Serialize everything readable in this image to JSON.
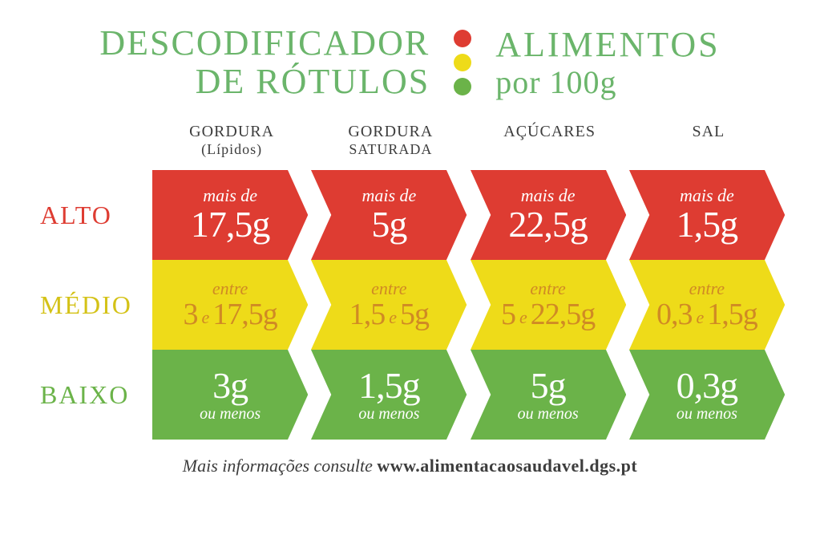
{
  "type": "infographic",
  "background_color": "#ffffff",
  "header": {
    "title_left_line1": "DESCODIFICADOR",
    "title_left_line2": "DE RÓTULOS",
    "title_right_line1": "ALIMENTOS",
    "title_right_line2": "por 100g",
    "title_color": "#6bb56b",
    "title_fontsize": 44
  },
  "traffic_colors": {
    "red": "#de3c32",
    "yellow": "#eedb19",
    "green": "#6bb349"
  },
  "columns": [
    {
      "label": "GORDURA",
      "sublabel": "(Lípidos)"
    },
    {
      "label": "GORDURA",
      "sublabel": "SATURADA"
    },
    {
      "label": "AÇÚCARES",
      "sublabel": ""
    },
    {
      "label": "SAL",
      "sublabel": ""
    }
  ],
  "column_header_color": "#3d3d3d",
  "rows": [
    {
      "label": "ALTO",
      "label_color": "#de3c32",
      "bg_color": "#de3c32",
      "pretext": "mais de",
      "cells": [
        {
          "value": "17,5g"
        },
        {
          "value": "5g"
        },
        {
          "value": "22,5g"
        },
        {
          "value": "1,5g"
        }
      ]
    },
    {
      "label": "MÉDIO",
      "label_color": "#d4c217",
      "bg_color": "#eedb19",
      "text_color": "#d08a24",
      "pretext": "entre",
      "connector": "e",
      "cells": [
        {
          "low": "3",
          "high": "17,5g"
        },
        {
          "low": "1,5",
          "high": "5g"
        },
        {
          "low": "5",
          "high": "22,5g"
        },
        {
          "low": "0,3",
          "high": "1,5g"
        }
      ]
    },
    {
      "label": "BAIXO",
      "label_color": "#6bb349",
      "bg_color": "#6bb349",
      "posttext": "ou menos",
      "cells": [
        {
          "value": "3g"
        },
        {
          "value": "1,5g"
        },
        {
          "value": "5g"
        },
        {
          "value": "0,3g"
        }
      ]
    }
  ],
  "arrow_notch": 26,
  "footer": {
    "text": "Mais informações consulte ",
    "url": "www.alimentacaosaudavel.dgs.pt",
    "color": "#3d3d3d"
  }
}
